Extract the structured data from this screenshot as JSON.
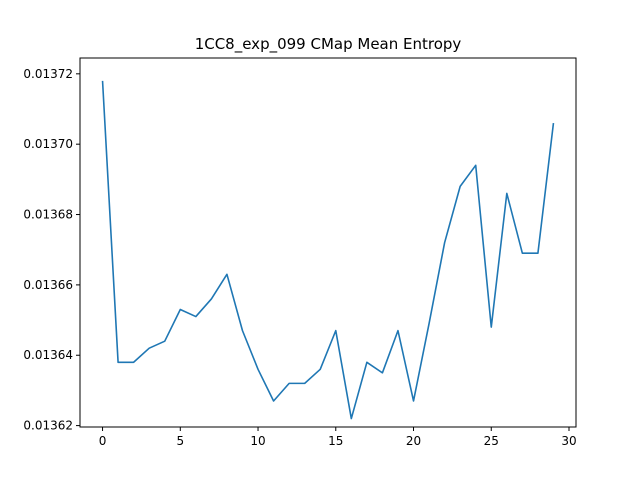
{
  "chart_data": {
    "type": "line",
    "title": "1CC8_exp_099 CMap Mean Entropy",
    "xlabel": "",
    "ylabel": "",
    "xlim": [
      -1.45,
      30.45
    ],
    "ylim": [
      0.0136196,
      0.0137245
    ],
    "x_ticks": [
      0,
      5,
      10,
      15,
      20,
      25,
      30
    ],
    "x_tick_labels": [
      "0",
      "5",
      "10",
      "15",
      "20",
      "25",
      "30"
    ],
    "y_ticks": [
      0.01362,
      0.01364,
      0.01366,
      0.01368,
      0.0137,
      0.01372
    ],
    "y_tick_labels": [
      "0.01362",
      "0.01364",
      "0.01366",
      "0.01368",
      "0.01370",
      "0.01372"
    ],
    "grid": false,
    "series": [
      {
        "color": "#1f77b4",
        "x": [
          0,
          1,
          2,
          3,
          4,
          5,
          6,
          7,
          8,
          9,
          10,
          11,
          12,
          13,
          14,
          15,
          16,
          17,
          18,
          19,
          20,
          21,
          22,
          23,
          24,
          25,
          26,
          27,
          28,
          29
        ],
        "y": [
          0.013718,
          0.013638,
          0.013638,
          0.013642,
          0.013644,
          0.013653,
          0.013651,
          0.013656,
          0.013663,
          0.013647,
          0.013636,
          0.013627,
          0.013632,
          0.013632,
          0.013636,
          0.013647,
          0.013622,
          0.013638,
          0.013635,
          0.013647,
          0.013627,
          0.013649,
          0.013672,
          0.013688,
          0.013694,
          0.013648,
          0.013686,
          0.013669,
          0.013669,
          0.013706
        ]
      }
    ]
  }
}
